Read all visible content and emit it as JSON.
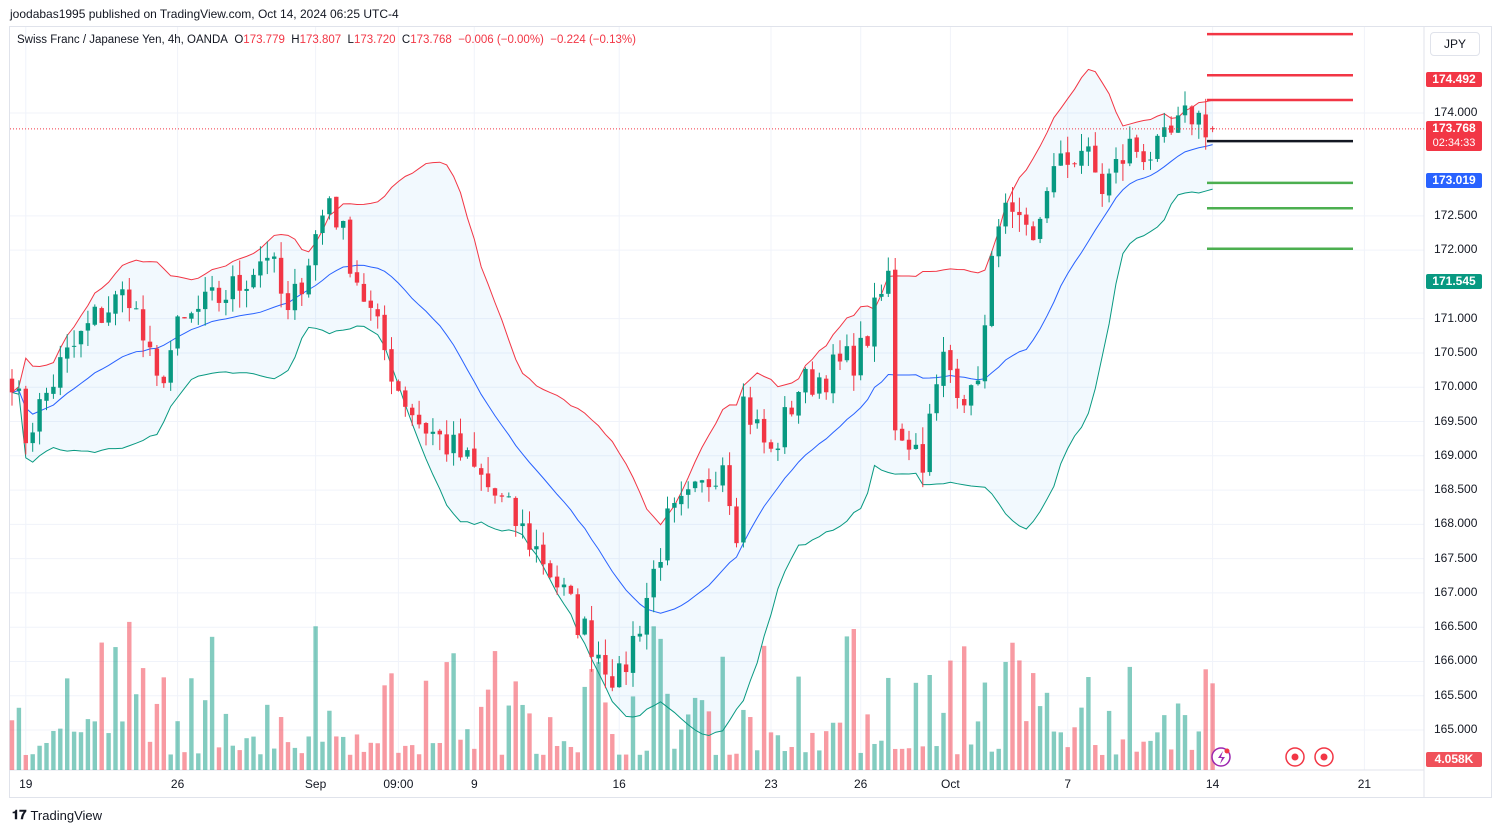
{
  "header": {
    "published": "joodabas1995 published on TradingView.com, Oct 14, 2024 06:25 UTC-4"
  },
  "legend": {
    "symbol": "Swiss Franc / Japanese Yen, 4h, OANDA",
    "o_label": "O",
    "o": "173.779",
    "h_label": "H",
    "h": "173.807",
    "l_label": "L",
    "l": "173.720",
    "c_label": "C",
    "c": "173.768",
    "change": "−0.006 (−0.00%)",
    "change2": "−0.224 (−0.13%)"
  },
  "currency": "JPY",
  "price_tags": {
    "upper_band": "174.492",
    "last": "173.768",
    "countdown": "02:34:33",
    "basis": "173.019",
    "lower_band": "171.545",
    "volume": "4.058K"
  },
  "colors": {
    "up": "#089981",
    "down": "#f23645",
    "basis": "#2962ff",
    "upper": "#f23645",
    "lower": "#089981",
    "fill": "#2196f3"
  },
  "brand": "TradingView",
  "chart_data": {
    "type": "candlestick",
    "title": "Swiss Franc / Japanese Yen, 4h, OANDA",
    "yticks": [
      "174.000",
      "172.500",
      "172.000",
      "171.000",
      "170.500",
      "170.000",
      "169.500",
      "169.000",
      "168.500",
      "168.000",
      "167.500",
      "167.000",
      "166.500",
      "166.000",
      "165.500",
      "165.000"
    ],
    "ytick_values": [
      174,
      172.5,
      172,
      171,
      170.5,
      170,
      169.5,
      169,
      168.5,
      168,
      167.5,
      167,
      166.5,
      166,
      165.5,
      165
    ],
    "xticks": [
      {
        "label": "19",
        "bar": 2
      },
      {
        "label": "26",
        "bar": 24
      },
      {
        "label": "Sep",
        "bar": 44
      },
      {
        "label": "09:00",
        "bar": 56
      },
      {
        "label": "9",
        "bar": 67
      },
      {
        "label": "16",
        "bar": 88
      },
      {
        "label": "23",
        "bar": 110
      },
      {
        "label": "26",
        "bar": 123
      },
      {
        "label": "Oct",
        "bar": 136
      },
      {
        "label": "7",
        "bar": 153
      },
      {
        "label": "14",
        "bar": 174
      },
      {
        "label": "21",
        "bar": 196
      }
    ],
    "close_waypoints": [
      [
        0,
        170.2
      ],
      [
        2,
        169.3
      ],
      [
        7,
        170.3
      ],
      [
        12,
        171.0
      ],
      [
        17,
        171.4
      ],
      [
        21,
        170.0
      ],
      [
        24,
        170.8
      ],
      [
        27,
        171.1
      ],
      [
        33,
        171.5
      ],
      [
        37,
        172.0
      ],
      [
        40,
        171.0
      ],
      [
        46,
        172.8
      ],
      [
        50,
        171.6
      ],
      [
        56,
        170.0
      ],
      [
        59,
        169.5
      ],
      [
        65,
        169.0
      ],
      [
        71,
        168.3
      ],
      [
        77,
        167.5
      ],
      [
        82,
        166.6
      ],
      [
        88,
        165.7
      ],
      [
        91,
        166.6
      ],
      [
        95,
        168.0
      ],
      [
        100,
        168.5
      ],
      [
        103,
        169.0
      ],
      [
        105,
        168.0
      ],
      [
        106,
        169.8
      ],
      [
        110,
        169.0
      ],
      [
        114,
        170.0
      ],
      [
        120,
        170.3
      ],
      [
        123,
        170.5
      ],
      [
        127,
        171.6
      ],
      [
        128,
        169.5
      ],
      [
        132,
        169.0
      ],
      [
        135,
        170.4
      ],
      [
        139,
        169.8
      ],
      [
        141,
        170.8
      ],
      [
        143,
        172.6
      ],
      [
        148,
        172.0
      ],
      [
        150,
        173.0
      ],
      [
        155,
        173.5
      ],
      [
        158,
        172.9
      ],
      [
        162,
        173.5
      ],
      [
        166,
        173.4
      ],
      [
        171,
        174.0
      ],
      [
        174,
        173.768
      ]
    ],
    "hlines": {
      "resistance": [
        175.15,
        174.55,
        174.19
      ],
      "pivot": [
        173.59
      ],
      "support": [
        172.98,
        172.61,
        172.02
      ]
    },
    "indicators": [
      "Bollinger Bands (20, 2)",
      "Volume"
    ],
    "last": {
      "open": 173.779,
      "high": 173.807,
      "low": 173.72,
      "close": 173.768
    },
    "ylim": [
      164.4,
      175.7
    ]
  }
}
